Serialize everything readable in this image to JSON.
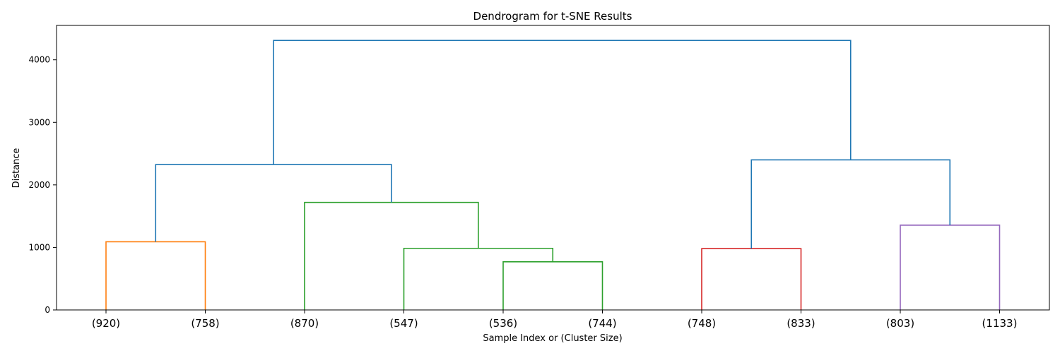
{
  "chart_data": {
    "type": "dendrogram",
    "title": "Dendrogram for t-SNE Results",
    "xlabel": "Sample Index or (Cluster Size)",
    "ylabel": "Distance",
    "ylim": [
      0,
      4550
    ],
    "yticks": [
      0,
      1000,
      2000,
      3000,
      4000
    ],
    "grid": false,
    "leaves": [
      "(920)",
      "(758)",
      "(870)",
      "(547)",
      "(536)",
      "(744)",
      "(748)",
      "(833)",
      "(803)",
      "(1133)"
    ],
    "colors": {
      "C0": "#1f77b4",
      "C1": "#ff7f0e",
      "C2": "#2ca02c",
      "C3": "#d62728",
      "C4": "#9467bd"
    },
    "merges": [
      {
        "id": "m1",
        "left": "(920)",
        "right": "(758)",
        "height": 1090,
        "color": "C1"
      },
      {
        "id": "m2",
        "left": "(536)",
        "right": "(744)",
        "height": 770,
        "color": "C2"
      },
      {
        "id": "m3",
        "left": "(547)",
        "right": "m2",
        "height": 985,
        "color": "C2"
      },
      {
        "id": "m4",
        "left": "(870)",
        "right": "m3",
        "height": 1720,
        "color": "C2"
      },
      {
        "id": "m5",
        "left": "m1",
        "right": "m4",
        "height": 2325,
        "color": "C0"
      },
      {
        "id": "m6",
        "left": "(748)",
        "right": "(833)",
        "height": 980,
        "color": "C3"
      },
      {
        "id": "m7",
        "left": "(803)",
        "right": "(1133)",
        "height": 1355,
        "color": "C4"
      },
      {
        "id": "m8",
        "left": "m6",
        "right": "m7",
        "height": 2400,
        "color": "C0"
      },
      {
        "id": "m9",
        "left": "m5",
        "right": "m8",
        "height": 4310,
        "color": "C0"
      }
    ]
  }
}
